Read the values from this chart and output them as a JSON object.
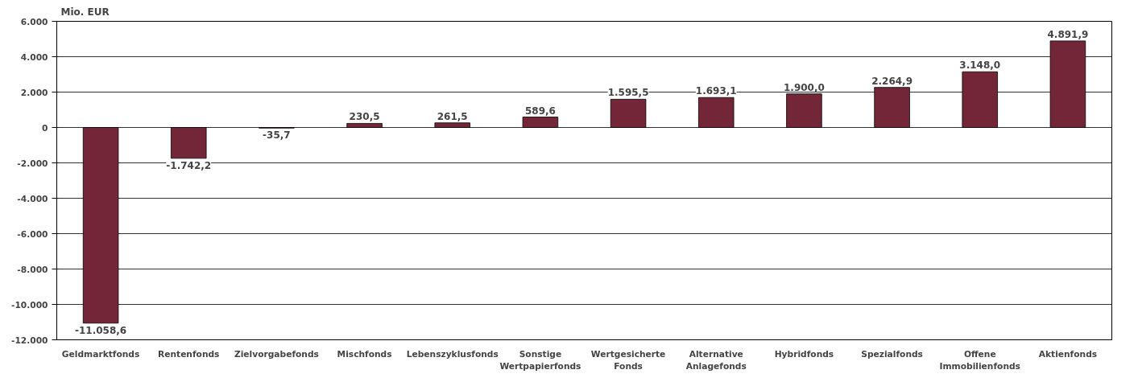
{
  "chart_data": {
    "type": "bar",
    "ylabel": "Mio. EUR",
    "categories": [
      "Geldmarktfonds",
      "Rentenfonds",
      "Zielvorgabefonds",
      "Mischfonds",
      "Lebenszyklusfonds",
      "Sonstige Wertpapierfonds",
      "Wertgesicherte Fonds",
      "Alternative Anlagefonds",
      "Hybridfonds",
      "Spezialfonds",
      "Offene Immobilienfonds",
      "Aktienfonds"
    ],
    "values": [
      -11058.6,
      -1742.2,
      -35.7,
      230.5,
      261.5,
      589.6,
      1595.5,
      1693.1,
      1900.0,
      2264.9,
      3148.0,
      4891.9
    ],
    "value_labels": [
      "-11.058,6",
      "-1.742,2",
      "-35,7",
      "230,5",
      "261,5",
      "589,6",
      "1.595,5",
      "1.693,1",
      "1.900,0",
      "2.264,9",
      "3.148,0",
      "4.891,9"
    ],
    "color": "#722637",
    "ylim": [
      -12000,
      6000
    ],
    "yticks": [
      {
        "value": -12000,
        "label": "-12.000"
      },
      {
        "value": -10000,
        "label": "-10.000"
      },
      {
        "value": -8000,
        "label": "-8.000"
      },
      {
        "value": -6000,
        "label": "-6.000"
      },
      {
        "value": -4000,
        "label": "-4.000"
      },
      {
        "value": -2000,
        "label": "-2.000"
      },
      0,
      {
        "value": 2000,
        "label": "2.000"
      },
      {
        "value": 4000,
        "label": "4.000"
      },
      {
        "value": 6000,
        "label": "6.000"
      }
    ],
    "grid": "y"
  }
}
